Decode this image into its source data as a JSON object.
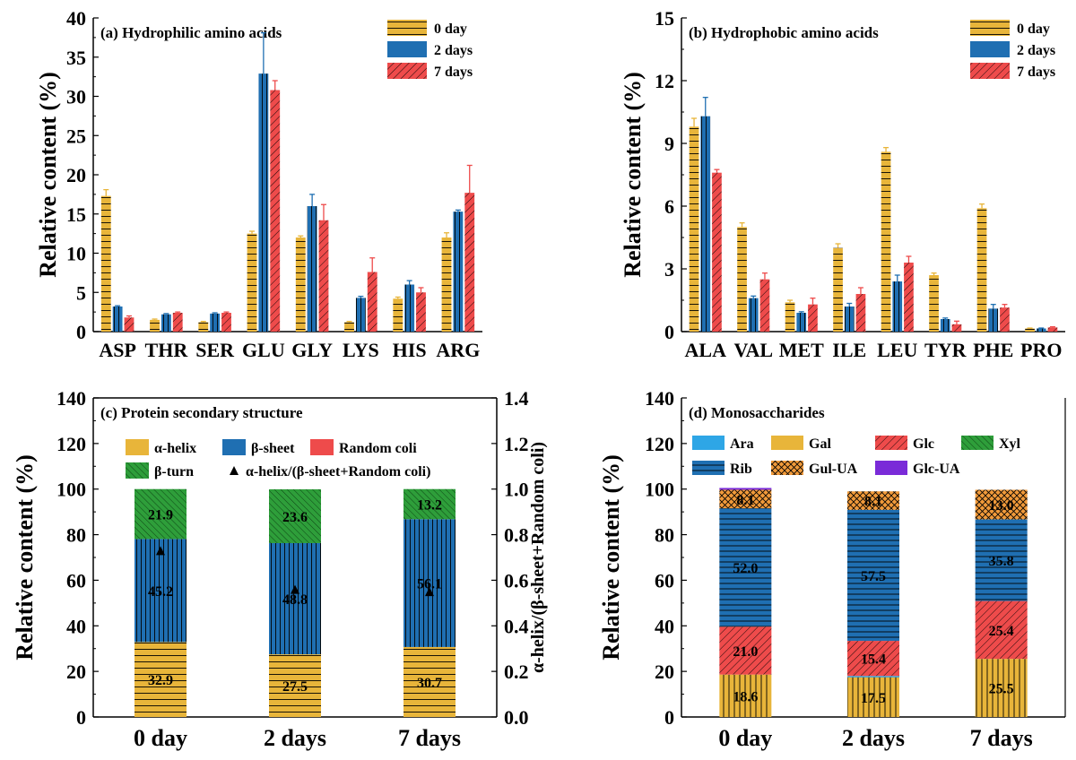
{
  "colors": {
    "gold": "#E8B53A",
    "blue": "#1F6FB2",
    "red": "#EE4B4B",
    "green": "#2E9E3A",
    "lightblue": "#2EA6E6",
    "orange": "#F19A3A",
    "purple": "#7A2BD8"
  },
  "chart_data": [
    {
      "id": "a",
      "type": "bar",
      "title": "(a) Hydrophilic amino acids",
      "ylabel": "Relative content (%)",
      "xlabel": "",
      "ylim": [
        0,
        40
      ],
      "yticks": [
        "0",
        "5",
        "10",
        "15",
        "20",
        "25",
        "30",
        "35",
        "40"
      ],
      "categories": [
        "ASP",
        "THR",
        "SER",
        "GLU",
        "GLY",
        "LYS",
        "HIS",
        "ARG"
      ],
      "legend": [
        "0 day",
        "2 days",
        "7 days"
      ],
      "series": [
        {
          "name": "0 day",
          "values": [
            17.3,
            1.5,
            1.2,
            12.5,
            12.0,
            1.2,
            4.2,
            12.0
          ],
          "errors": [
            0.8,
            0.1,
            0.1,
            0.3,
            0.2,
            0.1,
            0.2,
            0.6
          ]
        },
        {
          "name": "2 days",
          "values": [
            3.2,
            2.2,
            2.3,
            32.9,
            16.0,
            4.3,
            6.0,
            15.3
          ],
          "errors": [
            0.1,
            0.1,
            0.1,
            5.2,
            1.5,
            0.2,
            0.5,
            0.2
          ]
        },
        {
          "name": "7 days",
          "values": [
            1.8,
            2.4,
            2.4,
            30.8,
            14.2,
            7.6,
            5.0,
            17.7
          ],
          "errors": [
            0.2,
            0.1,
            0.1,
            1.2,
            2.0,
            1.8,
            0.6,
            3.5
          ]
        }
      ]
    },
    {
      "id": "b",
      "type": "bar",
      "title": "(b) Hydrophobic amino acids",
      "ylabel": "Relative content (%)",
      "xlabel": "",
      "ylim": [
        0,
        15
      ],
      "yticks": [
        "0",
        "3",
        "6",
        "9",
        "12",
        "15"
      ],
      "categories": [
        "ALA",
        "VAL",
        "MET",
        "ILE",
        "LEU",
        "TYR",
        "PHE",
        "PRO"
      ],
      "legend": [
        "0 day",
        "2 days",
        "7 days"
      ],
      "series": [
        {
          "name": "0 day",
          "values": [
            9.8,
            5.0,
            1.4,
            4.0,
            8.6,
            2.7,
            5.9,
            0.15
          ],
          "errors": [
            0.4,
            0.2,
            0.1,
            0.2,
            0.2,
            0.1,
            0.2,
            0.02
          ]
        },
        {
          "name": "2 days",
          "values": [
            10.3,
            1.6,
            0.9,
            1.2,
            2.4,
            0.6,
            1.1,
            0.15
          ],
          "errors": [
            0.9,
            0.1,
            0.05,
            0.15,
            0.3,
            0.05,
            0.2,
            0.02
          ]
        },
        {
          "name": "7 days",
          "values": [
            7.6,
            2.5,
            1.3,
            1.8,
            3.3,
            0.35,
            1.15,
            0.2
          ],
          "errors": [
            0.15,
            0.3,
            0.3,
            0.3,
            0.3,
            0.15,
            0.15,
            0.03
          ]
        }
      ]
    },
    {
      "id": "c",
      "type": "stacked-bar",
      "title": "(c) Protein secondary structure",
      "ylabel": "Relative content (%)",
      "ylabel_right": "α-helix/(β-sheet+Random coli)",
      "ylim": [
        0,
        140
      ],
      "yticks": [
        "0",
        "20",
        "40",
        "60",
        "80",
        "100",
        "120",
        "140"
      ],
      "ylim_right": [
        0.0,
        1.4
      ],
      "yticks_right": [
        "0.0",
        "0.2",
        "0.4",
        "0.6",
        "0.8",
        "1.0",
        "1.2",
        "1.4"
      ],
      "categories": [
        "0 day",
        "2 days",
        "7 days"
      ],
      "legend": [
        "α-helix",
        "β-sheet",
        "Random coli",
        "β-turn",
        "α-helix/(β-sheet+Random coli)"
      ],
      "series": [
        {
          "name": "α-helix",
          "values": [
            32.9,
            27.5,
            30.7
          ],
          "labels": [
            "32.9",
            "27.5",
            "30.7"
          ]
        },
        {
          "name": "β-sheet",
          "values": [
            45.2,
            48.8,
            56.1
          ],
          "labels": [
            "45.2",
            "48.8",
            "56.1"
          ]
        },
        {
          "name": "Random coli",
          "values": [
            0,
            0,
            0
          ],
          "labels": [
            "",
            "",
            ""
          ]
        },
        {
          "name": "β-turn",
          "values": [
            21.9,
            23.6,
            13.2
          ],
          "labels": [
            "21.9",
            "23.6",
            "13.2"
          ]
        }
      ],
      "ratio": [
        0.73,
        0.56,
        0.55
      ]
    },
    {
      "id": "d",
      "type": "stacked-bar",
      "title": "(d) Monosaccharides",
      "ylabel": "Relative content (%)",
      "ylim": [
        0,
        140
      ],
      "yticks": [
        "0",
        "20",
        "40",
        "60",
        "80",
        "100",
        "120",
        "140"
      ],
      "categories": [
        "0 day",
        "2 days",
        "7 days"
      ],
      "legend": [
        "Ara",
        "Gal",
        "Glc",
        "Xyl",
        "Rib",
        "Gul-UA",
        "Glc-UA"
      ],
      "series": [
        {
          "name": "Gal",
          "values": [
            18.6,
            17.5,
            25.5
          ],
          "labels": [
            "18.6",
            "17.5",
            "25.5"
          ]
        },
        {
          "name": "Ara",
          "values": [
            0,
            0.5,
            0
          ],
          "labels": [
            "",
            "",
            ""
          ]
        },
        {
          "name": "Glc",
          "values": [
            21.0,
            15.4,
            25.4
          ],
          "labels": [
            "21.0",
            "15.4",
            "25.4"
          ]
        },
        {
          "name": "Rib",
          "values": [
            52.0,
            57.5,
            35.8
          ],
          "labels": [
            "52.0",
            "57.5",
            "35.8"
          ]
        },
        {
          "name": "Gul-UA",
          "values": [
            8.1,
            8.1,
            13.0
          ],
          "labels": [
            "8.1",
            "8.1",
            "13.0"
          ]
        },
        {
          "name": "Glc-UA",
          "values": [
            0.8,
            0,
            0
          ],
          "labels": [
            "",
            "",
            ""
          ]
        }
      ]
    }
  ]
}
